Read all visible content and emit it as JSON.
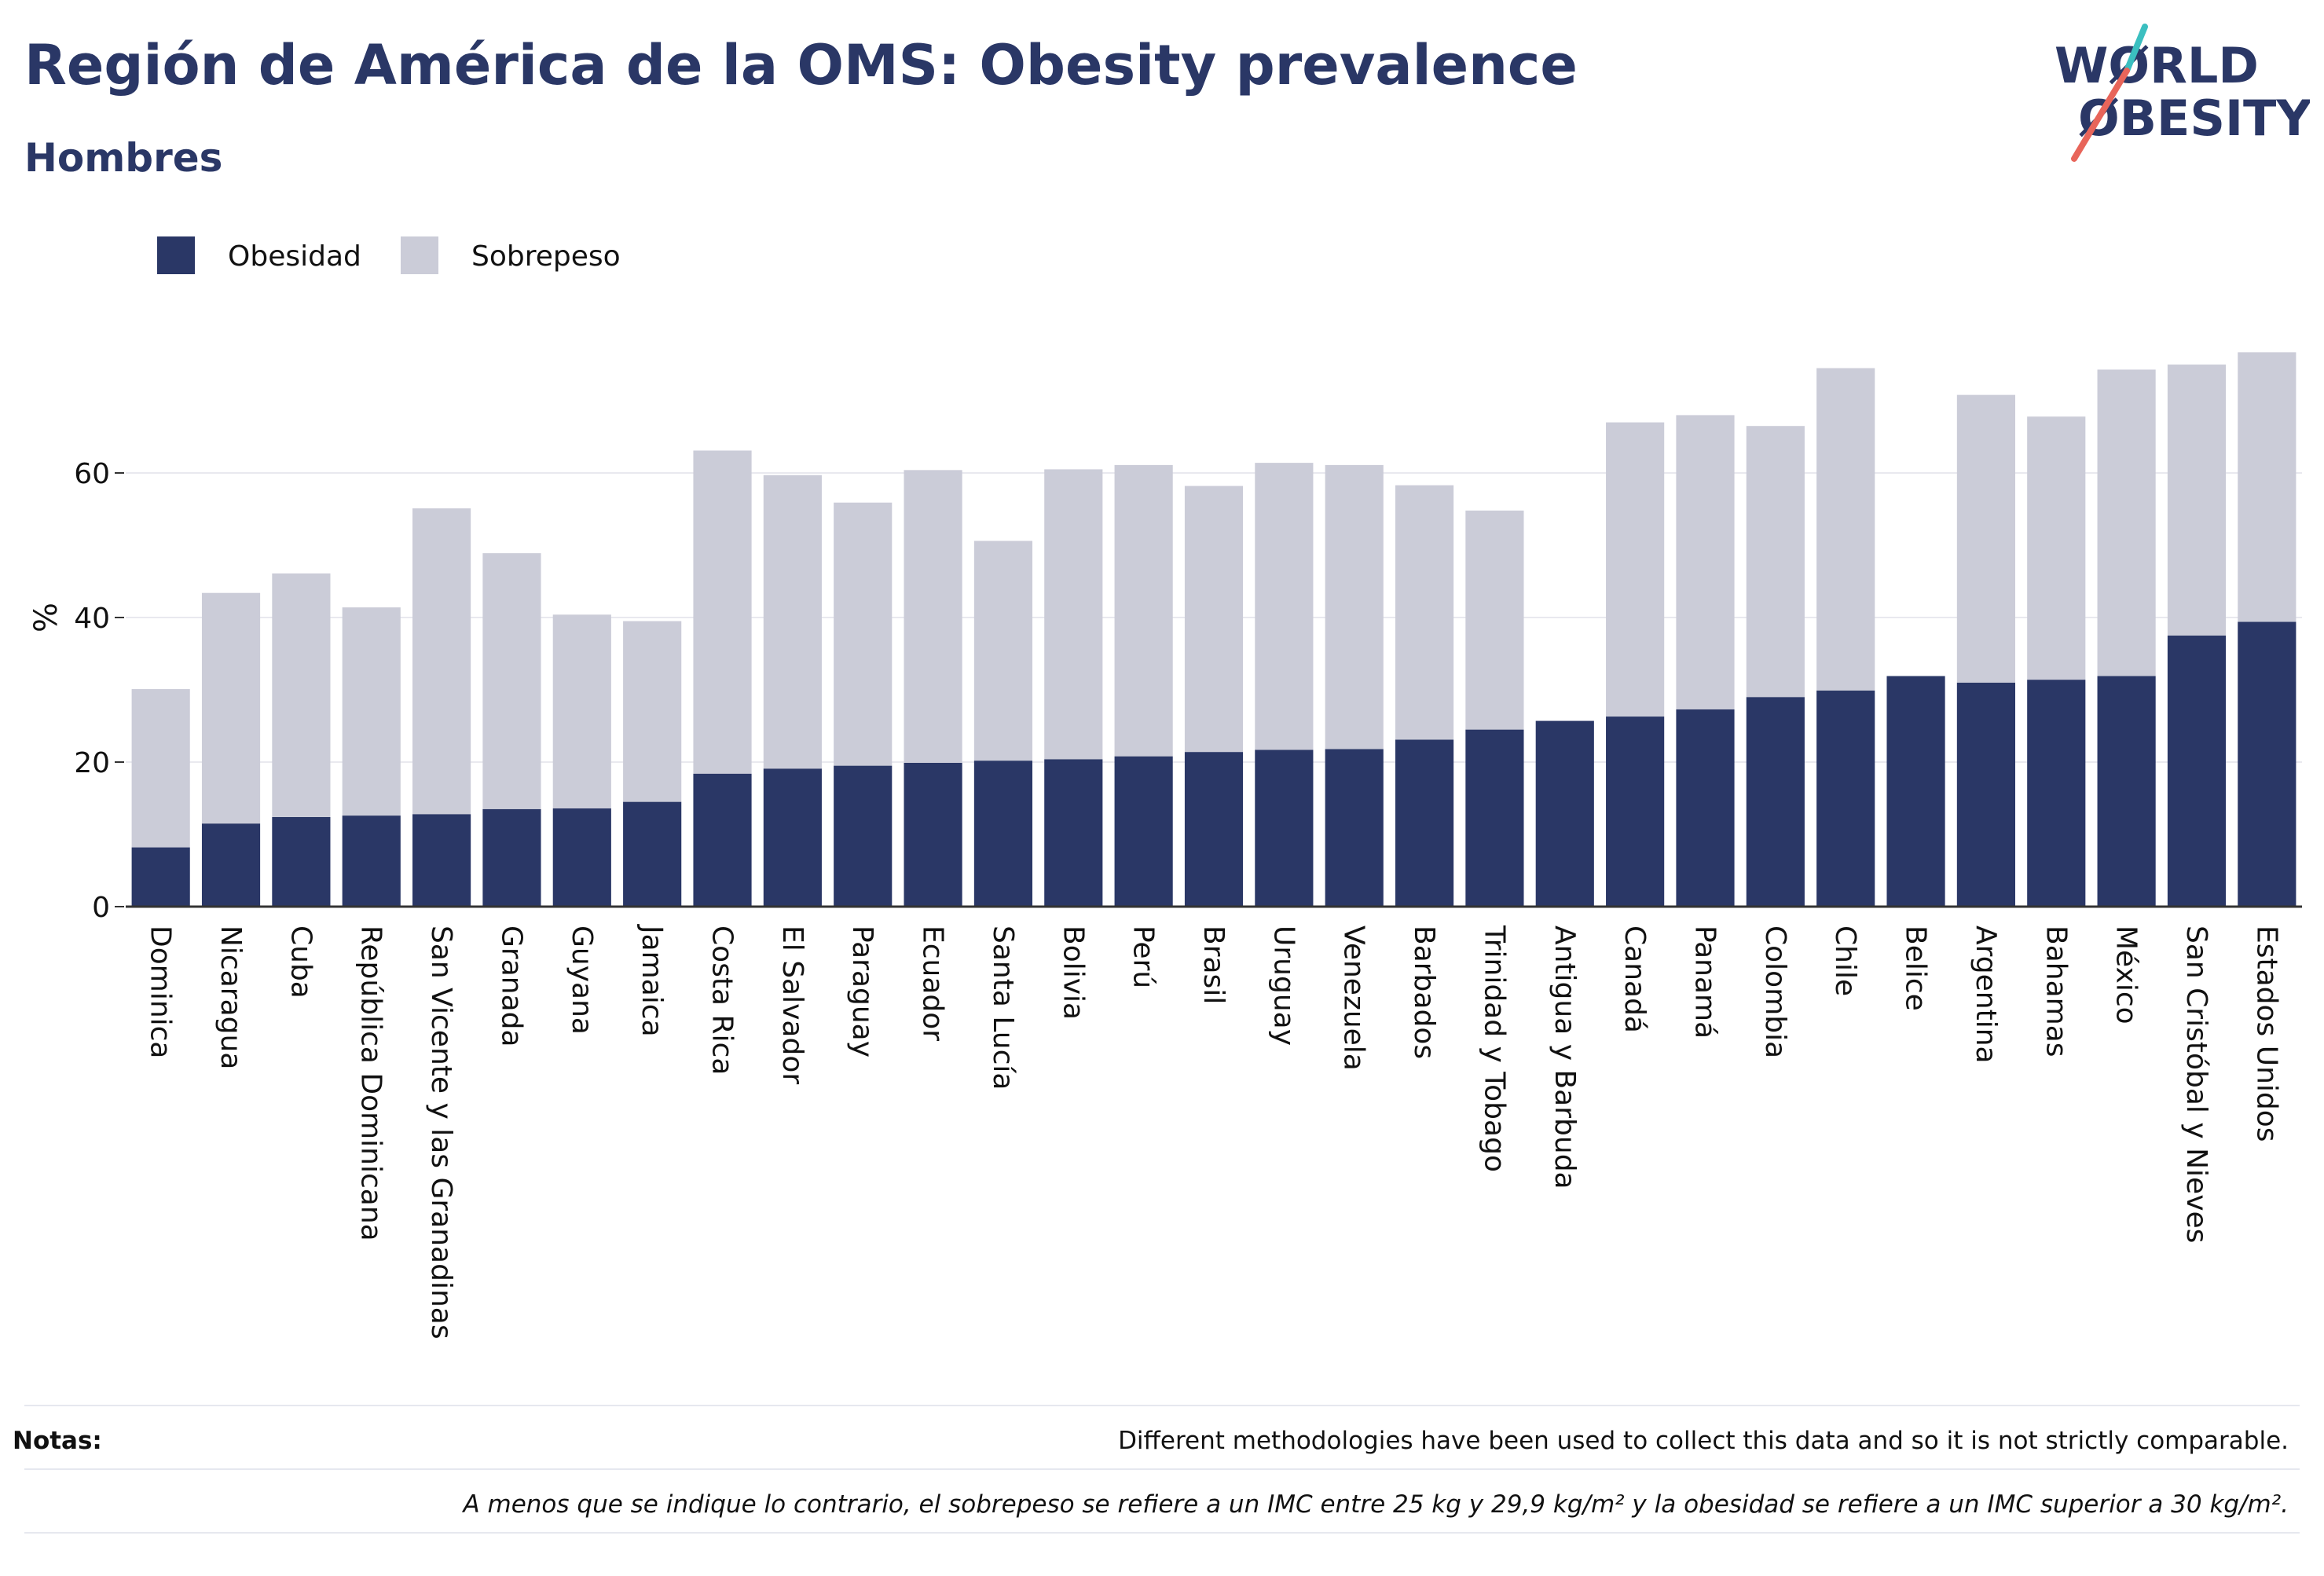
{
  "header": {
    "title": "Región de América de la OMS: Obesity prevalence",
    "subtitle": "Hombres"
  },
  "logo": {
    "line1": "WØRLD",
    "line2": "ØBESITY",
    "text_color": "#2a3766",
    "slash_colors": [
      "#3bbfc0",
      "#e8655a"
    ]
  },
  "colors": {
    "obesidad": "#2a3766",
    "sobrepeso": "#cbccd8",
    "grid": "#e9e9ef",
    "axis": "#333333"
  },
  "chart_data": {
    "type": "bar",
    "stacked": true,
    "ylabel": "%",
    "ylim": [
      0,
      80
    ],
    "yticks": [
      0,
      20,
      40,
      60
    ],
    "grid": true,
    "legend_position": "top-left",
    "categories": [
      "Dominica",
      "Nicaragua",
      "Cuba",
      "República Dominicana",
      "San Vicente y las Granadinas",
      "Granada",
      "Guyana",
      "Jamaica",
      "Costa Rica",
      "El Salvador",
      "Paraguay",
      "Ecuador",
      "Santa Lucía",
      "Bolivia",
      "Perú",
      "Brasil",
      "Uruguay",
      "Venezuela",
      "Barbados",
      "Trinidad y Tobago",
      "Antigua y Barbuda",
      "Canadá",
      "Panamá",
      "Colombia",
      "Chile",
      "Belice",
      "Argentina",
      "Bahamas",
      "México",
      "San Cristóbal y Nieves",
      "Estados Unidos"
    ],
    "series": [
      {
        "name": "Obesidad",
        "values": [
          8.2,
          11.5,
          12.4,
          12.6,
          12.8,
          13.5,
          13.6,
          14.5,
          18.4,
          19.1,
          19.5,
          19.9,
          20.2,
          20.4,
          20.8,
          21.4,
          21.7,
          21.8,
          23.1,
          24.5,
          25.7,
          26.3,
          27.3,
          29.0,
          29.9,
          31.9,
          31.0,
          31.4,
          31.9,
          37.5,
          39.4
        ]
      },
      {
        "name": "Sobrepeso",
        "values": [
          21.9,
          31.9,
          33.7,
          28.8,
          42.3,
          35.4,
          26.8,
          25.0,
          44.7,
          40.6,
          36.4,
          40.5,
          30.4,
          40.1,
          40.3,
          36.8,
          39.7,
          39.3,
          35.2,
          30.3,
          0,
          40.7,
          40.7,
          37.5,
          44.6,
          0,
          39.8,
          36.4,
          42.4,
          37.5,
          37.3
        ]
      }
    ]
  },
  "notes": {
    "label": "Notas:",
    "line1": "Different methodologies have been used to collect this data and so it is not strictly comparable.",
    "line2": "A menos que se indique lo contrario, el sobrepeso se refiere a un IMC entre 25 kg y 29,9 kg/m² y la obesidad se refiere a un IMC superior a 30 kg/m²."
  }
}
